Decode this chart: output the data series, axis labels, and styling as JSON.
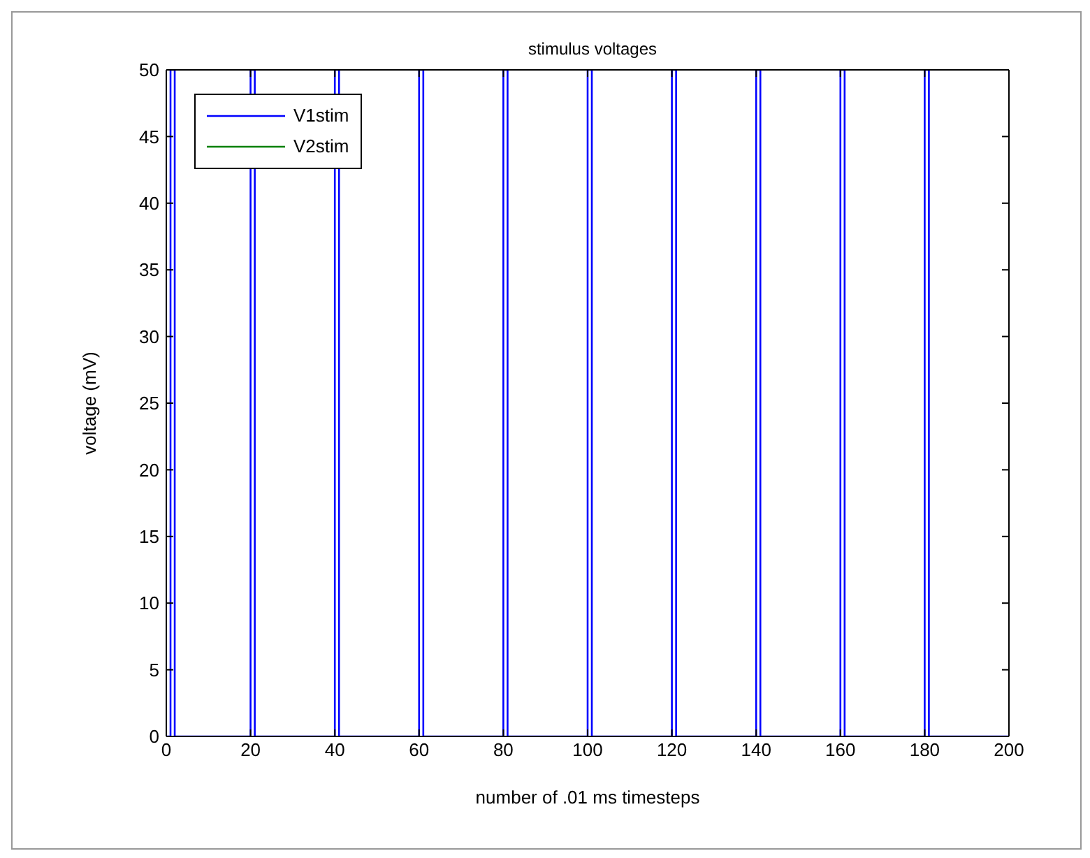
{
  "chart_data": {
    "type": "line",
    "title": "stimulus voltages",
    "xlabel": "number of .01 ms timesteps",
    "ylabel": "voltage (mV)",
    "xlim": [
      0,
      200
    ],
    "xticks": [
      0,
      20,
      40,
      60,
      80,
      100,
      120,
      140,
      160,
      180,
      200
    ],
    "ylim": [
      0,
      50
    ],
    "yticks": [
      0,
      5,
      10,
      15,
      20,
      25,
      30,
      35,
      40,
      45,
      50
    ],
    "legend": "top left",
    "marker": "none",
    "line_style": "solid",
    "series": [
      {
        "name": "V1stim",
        "color": "#0000ff",
        "x": [
          0,
          1,
          1,
          2,
          2,
          20,
          20,
          21,
          21,
          40,
          40,
          41,
          41,
          60,
          60,
          61,
          61,
          80,
          80,
          81,
          81,
          100,
          100,
          101,
          101,
          120,
          120,
          121,
          121,
          140,
          140,
          141,
          141,
          160,
          160,
          161,
          161,
          180,
          180,
          181,
          181,
          200
        ],
        "values": [
          0,
          0,
          50,
          50,
          0,
          0,
          50,
          50,
          0,
          0,
          50,
          50,
          0,
          0,
          50,
          50,
          0,
          0,
          50,
          50,
          0,
          0,
          50,
          50,
          0,
          0,
          50,
          50,
          0,
          0,
          50,
          50,
          0,
          0,
          50,
          50,
          0,
          0,
          50,
          50,
          0,
          0
        ]
      },
      {
        "name": "V2stim",
        "color": "#008000",
        "values": [
          null
        ]
      }
    ]
  }
}
